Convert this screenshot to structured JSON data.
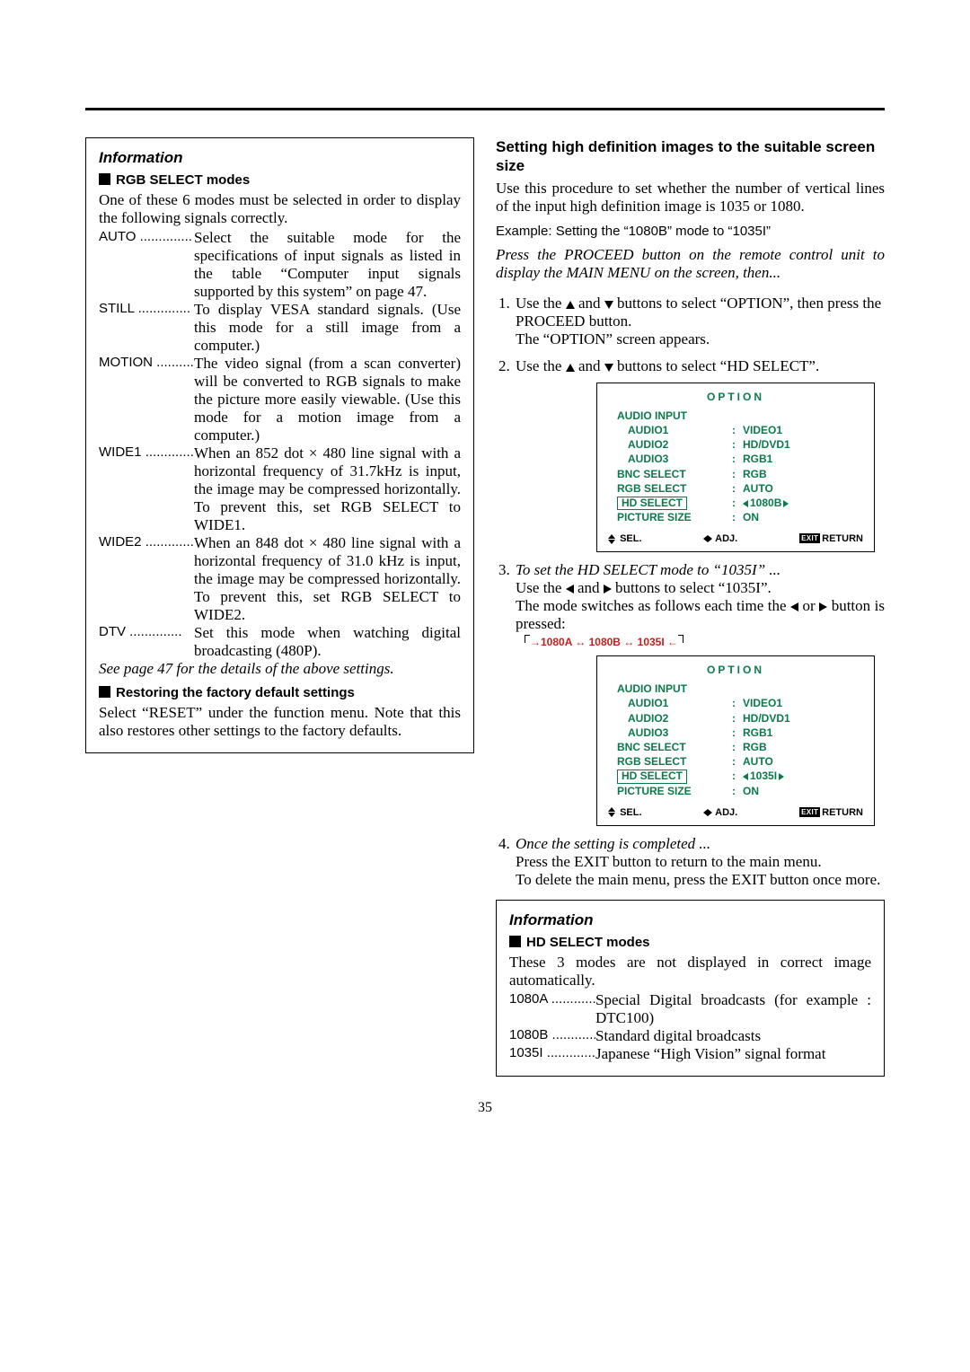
{
  "page_number": "35",
  "colors": {
    "osd_green": "#0b7a4a",
    "seq_red": "#c22020",
    "black": "#000000",
    "white": "#ffffff"
  },
  "left": {
    "info_title": "Information",
    "rgb_heading": "RGB SELECT modes",
    "intro": "One of these 6 modes must be selected in order to display the following signals correctly.",
    "modes": [
      {
        "term": "AUTO",
        "desc": "Select the suitable mode for the specifications of input signals as listed in the table “Computer input signals supported by this system” on page 47."
      },
      {
        "term": "STILL",
        "desc": "To display VESA standard signals. (Use this mode for a still image from a computer.)"
      },
      {
        "term": "MOTION",
        "desc": "The video signal (from a scan converter) will be converted to RGB signals to make the picture more easily viewable. (Use this mode for a motion image from a computer.)"
      },
      {
        "term": "WIDE1",
        "desc": "When an 852 dot × 480 line signal with a horizontal frequency of 31.7kHz is input, the image may be compressed horizontally. To prevent this, set RGB SELECT to WIDE1."
      },
      {
        "term": "WIDE2",
        "desc": "When an 848 dot × 480 line signal with a horizontal frequency of 31.0 kHz is input, the image may be compressed horizontally. To prevent this, set RGB SELECT to WIDE2."
      },
      {
        "term": "DTV",
        "desc": "Set this mode when watching digital broadcasting (480P)."
      }
    ],
    "see_page": "See page 47 for the details of the above settings.",
    "restore_heading": "Restoring the factory default settings",
    "restore_body": "Select “RESET” under the function menu. Note that this also restores other settings to the factory defaults."
  },
  "right": {
    "title": "Setting high definition images to the suitable screen size",
    "intro": "Use this procedure to set whether the number of vertical lines of the input high definition image is 1035 or 1080.",
    "example": "Example: Setting the “1080B” mode to “1035I”",
    "press_proceed": "Press the PROCEED button on the remote control unit to display the MAIN MENU on the screen, then...",
    "step1_a": "Use the ",
    "step1_b": " and ",
    "step1_c": " buttons to select “OPTION”, then press the PROCEED button.",
    "step1_d": "The “OPTION” screen appears.",
    "step2_a": "Use the ",
    "step2_b": " and ",
    "step2_c": " buttons to select “HD SELECT”.",
    "step3_lead": "To set the HD SELECT mode to “1035I” ...",
    "step3_a": "Use the ",
    "step3_b": " and ",
    "step3_c": " buttons to select “1035I”.",
    "step3_d_a": "The mode switches as follows each time the ",
    "step3_d_b": " or ",
    "step3_d_c": " button is pressed:",
    "seq": {
      "a": "1080A",
      "b": "1080B",
      "c": "1035I"
    },
    "step4_lead": "Once the setting is completed ...",
    "step4_a": "Press the EXIT button to return to the main menu.",
    "step4_b": "To delete the main menu, press the EXIT button once more.",
    "osd": {
      "title": "OPTION",
      "rows": [
        {
          "label": "AUDIO INPUT",
          "indent": false,
          "value": ""
        },
        {
          "label": "AUDIO1",
          "indent": true,
          "value": "VIDEO1"
        },
        {
          "label": "AUDIO2",
          "indent": true,
          "value": "HD/DVD1"
        },
        {
          "label": "AUDIO3",
          "indent": true,
          "value": "RGB1"
        },
        {
          "label": "BNC SELECT",
          "indent": false,
          "value": "RGB"
        },
        {
          "label": "RGB SELECT",
          "indent": false,
          "value": "AUTO"
        },
        {
          "label": "HD SELECT",
          "indent": false,
          "highlight": true,
          "value_hl": "1080B",
          "arrows": true
        },
        {
          "label": "PICTURE SIZE",
          "indent": false,
          "value": "ON"
        }
      ],
      "footer": {
        "sel": "SEL.",
        "adj": "ADJ.",
        "exit": "EXIT",
        "return": "RETURN"
      }
    },
    "osd2_hd_value": "1035I",
    "info2": {
      "title": "Information",
      "heading": "HD SELECT modes",
      "intro": "These 3 modes are not displayed in correct image automatically.",
      "modes": [
        {
          "term": "1080A",
          "desc": "Special Digital broadcasts (for example : DTC100)"
        },
        {
          "term": "1080B",
          "desc": "Standard digital broadcasts"
        },
        {
          "term": "1035I",
          "desc": "Japanese “High Vision” signal format"
        }
      ]
    }
  }
}
